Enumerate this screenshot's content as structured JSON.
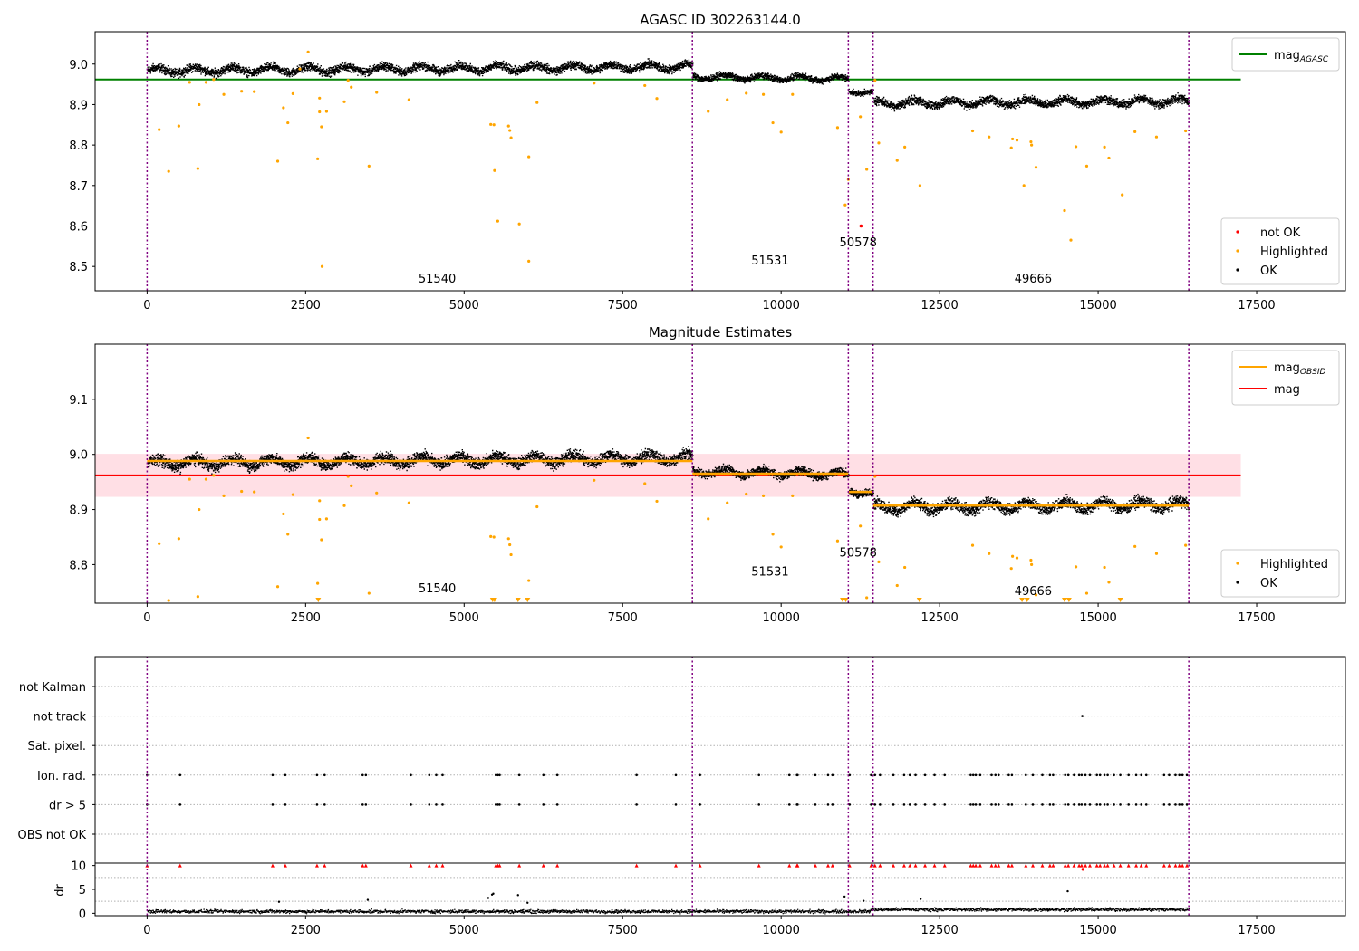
{
  "chart_data": [
    {
      "type": "scatter",
      "title": "AGASC ID 302263144.0",
      "xlim": [
        -820,
        18900
      ],
      "ylim": [
        8.44,
        9.08
      ],
      "xticks": [
        0,
        2500,
        5000,
        7500,
        10000,
        12500,
        15000,
        17500
      ],
      "yticks": [
        8.5,
        8.6,
        8.7,
        8.8,
        8.9,
        9.0
      ],
      "vlines": [
        0,
        8600,
        11060,
        11450,
        16430
      ],
      "obsid_labels": [
        {
          "text": "51540",
          "x": 4280,
          "y": 8.46
        },
        {
          "text": "51531",
          "x": 9530,
          "y": 8.505
        },
        {
          "text": "50578",
          "x": 10920,
          "y": 8.55
        },
        {
          "text": "49666",
          "x": 13680,
          "y": 8.46
        }
      ],
      "hline": {
        "name": "mag",
        "sub": "AGASC",
        "y": 8.962,
        "x0": -820,
        "x1": 17250,
        "color": "#008000"
      },
      "legend_lines": [
        {
          "name": "mag",
          "sub": "AGASC",
          "color": "#008000"
        }
      ],
      "legend_points": [
        {
          "name": "not OK",
          "color": "#ff0000"
        },
        {
          "name": "Highlighted",
          "color": "#ffa500"
        },
        {
          "name": "OK",
          "color": "#000000"
        }
      ],
      "ok_segments": [
        {
          "x0": 0,
          "x1": 8600,
          "y0": 8.985,
          "y1": 8.995,
          "spread": 0.016
        },
        {
          "x0": 8600,
          "x1": 11060,
          "y0": 8.97,
          "y1": 8.965,
          "spread": 0.012
        },
        {
          "x0": 11060,
          "x1": 11450,
          "y0": 8.935,
          "y1": 8.93,
          "spread": 0.01
        },
        {
          "x0": 11450,
          "x1": 16430,
          "y0": 8.905,
          "y1": 8.91,
          "spread": 0.016
        }
      ],
      "highlighted": [
        [
          190,
          8.838
        ],
        [
          340,
          8.735
        ],
        [
          500,
          8.847
        ],
        [
          670,
          8.955
        ],
        [
          800,
          8.742
        ],
        [
          820,
          8.9
        ],
        [
          930,
          8.955
        ],
        [
          1050,
          8.962
        ],
        [
          1210,
          8.925
        ],
        [
          1490,
          8.933
        ],
        [
          1690,
          8.932
        ],
        [
          2060,
          8.76
        ],
        [
          2150,
          8.892
        ],
        [
          2220,
          8.855
        ],
        [
          2300,
          8.927
        ],
        [
          2410,
          8.988
        ],
        [
          2540,
          9.03
        ],
        [
          2690,
          8.766
        ],
        [
          2720,
          8.916
        ],
        [
          2750,
          8.845
        ],
        [
          2720,
          8.882
        ],
        [
          2760,
          8.5
        ],
        [
          2830,
          8.883
        ],
        [
          3110,
          8.907
        ],
        [
          3170,
          8.96
        ],
        [
          3220,
          8.943
        ],
        [
          3500,
          8.748
        ],
        [
          3620,
          8.93
        ],
        [
          4130,
          8.912
        ],
        [
          5420,
          8.851
        ],
        [
          5470,
          8.85
        ],
        [
          5480,
          8.737
        ],
        [
          5530,
          8.612
        ],
        [
          5700,
          8.847
        ],
        [
          5720,
          8.836
        ],
        [
          5740,
          8.818
        ],
        [
          5870,
          8.605
        ],
        [
          6020,
          8.513
        ],
        [
          6020,
          8.771
        ],
        [
          6150,
          8.905
        ],
        [
          7050,
          8.953
        ],
        [
          7850,
          8.947
        ],
        [
          8040,
          8.915
        ],
        [
          8850,
          8.883
        ],
        [
          9150,
          8.912
        ],
        [
          9450,
          8.928
        ],
        [
          9720,
          8.925
        ],
        [
          9870,
          8.855
        ],
        [
          10000,
          8.832
        ],
        [
          10180,
          8.925
        ],
        [
          10890,
          8.843
        ],
        [
          11010,
          8.652
        ],
        [
          11060,
          8.715
        ],
        [
          11250,
          8.87
        ],
        [
          11350,
          8.74
        ],
        [
          11480,
          8.96
        ],
        [
          11540,
          8.805
        ],
        [
          11830,
          8.762
        ],
        [
          11950,
          8.795
        ],
        [
          12190,
          8.7
        ],
        [
          13020,
          8.835
        ],
        [
          13280,
          8.82
        ],
        [
          13630,
          8.793
        ],
        [
          13650,
          8.815
        ],
        [
          13720,
          8.812
        ],
        [
          13830,
          8.7
        ],
        [
          13940,
          8.808
        ],
        [
          13950,
          8.8
        ],
        [
          14020,
          8.745
        ],
        [
          14470,
          8.638
        ],
        [
          14570,
          8.565
        ],
        [
          14650,
          8.796
        ],
        [
          14820,
          8.748
        ],
        [
          15100,
          8.795
        ],
        [
          15170,
          8.768
        ],
        [
          15380,
          8.677
        ],
        [
          15580,
          8.833
        ],
        [
          15920,
          8.82
        ],
        [
          16380,
          8.835
        ]
      ],
      "not_ok": [
        [
          11260,
          8.6
        ]
      ]
    },
    {
      "type": "scatter",
      "title": "Magnitude Estimates",
      "xlim": [
        -820,
        18900
      ],
      "ylim": [
        8.73,
        9.2
      ],
      "xticks": [
        0,
        2500,
        5000,
        7500,
        10000,
        12500,
        15000,
        17500
      ],
      "yticks": [
        8.8,
        8.9,
        9.0,
        9.1
      ],
      "vlines": [
        0,
        8600,
        11060,
        11450,
        16430
      ],
      "obsid_labels": [
        {
          "text": "51540",
          "x": 4280,
          "y": 8.75
        },
        {
          "text": "51531",
          "x": 9530,
          "y": 8.78
        },
        {
          "text": "50578",
          "x": 10920,
          "y": 8.815
        },
        {
          "text": "49666",
          "x": 13680,
          "y": 8.745
        }
      ],
      "band": {
        "y0": 8.923,
        "y1": 9.001,
        "x0": -820,
        "x1": 17250,
        "color": "#ffc0cb"
      },
      "hline": {
        "name": "mag",
        "y": 8.962,
        "x0": -820,
        "x1": 17250,
        "color": "#ff0000"
      },
      "obsid_mags": [
        {
          "x0": 0,
          "x1": 8600,
          "y": 8.988
        },
        {
          "x0": 8600,
          "x1": 11060,
          "y": 8.965
        },
        {
          "x0": 11060,
          "x1": 11450,
          "y": 8.932
        },
        {
          "x0": 11450,
          "x1": 16430,
          "y": 8.907
        }
      ],
      "legend_lines": [
        {
          "name": "mag",
          "sub": "OBSID",
          "color": "#ffa500"
        },
        {
          "name": "mag",
          "sub": "",
          "color": "#ff0000"
        }
      ],
      "legend_points": [
        {
          "name": "Highlighted",
          "color": "#ffa500"
        },
        {
          "name": "OK",
          "color": "#000000"
        }
      ],
      "ok_segments": [
        {
          "x0": 0,
          "x1": 8600,
          "y0": 8.985,
          "y1": 8.995,
          "spread": 0.016
        },
        {
          "x0": 8600,
          "x1": 11060,
          "y0": 8.97,
          "y1": 8.965,
          "spread": 0.012
        },
        {
          "x0": 11060,
          "x1": 11450,
          "y0": 8.935,
          "y1": 8.93,
          "spread": 0.01
        },
        {
          "x0": 11450,
          "x1": 16430,
          "y0": 8.905,
          "y1": 8.91,
          "spread": 0.016
        }
      ],
      "highlighted": [
        [
          190,
          8.838
        ],
        [
          340,
          8.735
        ],
        [
          500,
          8.847
        ],
        [
          670,
          8.955
        ],
        [
          800,
          8.742
        ],
        [
          820,
          8.9
        ],
        [
          930,
          8.955
        ],
        [
          1050,
          8.962
        ],
        [
          1210,
          8.925
        ],
        [
          1490,
          8.933
        ],
        [
          1690,
          8.932
        ],
        [
          2060,
          8.76
        ],
        [
          2150,
          8.892
        ],
        [
          2220,
          8.855
        ],
        [
          2300,
          8.927
        ],
        [
          2410,
          8.988
        ],
        [
          2540,
          9.03
        ],
        [
          2690,
          8.766
        ],
        [
          2720,
          8.916
        ],
        [
          2750,
          8.845
        ],
        [
          2720,
          8.882
        ],
        [
          2830,
          8.883
        ],
        [
          3110,
          8.907
        ],
        [
          3170,
          8.96
        ],
        [
          3220,
          8.943
        ],
        [
          3500,
          8.748
        ],
        [
          3620,
          8.93
        ],
        [
          4130,
          8.912
        ],
        [
          5420,
          8.851
        ],
        [
          5470,
          8.85
        ],
        [
          5700,
          8.847
        ],
        [
          5720,
          8.836
        ],
        [
          5740,
          8.818
        ],
        [
          6020,
          8.771
        ],
        [
          6150,
          8.905
        ],
        [
          7050,
          8.953
        ],
        [
          7850,
          8.947
        ],
        [
          8040,
          8.915
        ],
        [
          8850,
          8.883
        ],
        [
          9150,
          8.912
        ],
        [
          9450,
          8.928
        ],
        [
          9720,
          8.925
        ],
        [
          9870,
          8.855
        ],
        [
          10000,
          8.832
        ],
        [
          10180,
          8.925
        ],
        [
          10890,
          8.843
        ],
        [
          11250,
          8.87
        ],
        [
          11350,
          8.74
        ],
        [
          11480,
          8.96
        ],
        [
          11540,
          8.805
        ],
        [
          11830,
          8.762
        ],
        [
          11950,
          8.795
        ],
        [
          13020,
          8.835
        ],
        [
          13280,
          8.82
        ],
        [
          13630,
          8.793
        ],
        [
          13650,
          8.815
        ],
        [
          13720,
          8.812
        ],
        [
          13940,
          8.808
        ],
        [
          13950,
          8.8
        ],
        [
          14020,
          8.745
        ],
        [
          14650,
          8.796
        ],
        [
          14820,
          8.748
        ],
        [
          15100,
          8.795
        ],
        [
          15170,
          8.768
        ],
        [
          15580,
          8.833
        ],
        [
          15920,
          8.82
        ],
        [
          16380,
          8.835
        ]
      ],
      "below_range": [
        2700,
        5450,
        5480,
        5850,
        6000,
        10970,
        11020,
        12180,
        13800,
        13880,
        14470,
        14540,
        15350
      ]
    },
    {
      "type": "scatter",
      "xlim": [
        -820,
        18900
      ],
      "xticks": [
        0,
        2500,
        5000,
        7500,
        10000,
        12500,
        15000,
        17500
      ],
      "vlines": [
        0,
        8600,
        11060,
        11450,
        16430
      ],
      "flag_labels": [
        "not Kalman",
        "not track",
        "Sat. pixel.",
        "Ion. rad.",
        "dr > 5",
        "OBS not OK"
      ],
      "flags": {
        "not track": [
          14750
        ],
        "Ion. rad.": [
          0,
          520,
          1980,
          2180,
          2680,
          2800,
          3400,
          3450,
          4160,
          4450,
          4560,
          4660,
          5500,
          5530,
          5560,
          5870,
          6250,
          6470,
          7720,
          8340,
          8720,
          9650,
          10130,
          10250,
          10260,
          10540,
          10740,
          10810,
          11080,
          11420,
          11480,
          11560,
          11770,
          11940,
          12030,
          12120,
          12270,
          12420,
          12580,
          12990,
          13030,
          13070,
          13140,
          13320,
          13380,
          13430,
          13590,
          13640,
          13860,
          13970,
          14120,
          14240,
          14290,
          14480,
          14530,
          14620,
          14700,
          14740,
          14800,
          14870,
          14980,
          15030,
          15100,
          15150,
          15250,
          15350,
          15480,
          15600,
          15680,
          15760,
          16040,
          16120,
          16220,
          16280,
          16330,
          16400
        ],
        "dr > 5": [
          0,
          520,
          1980,
          2180,
          2680,
          2800,
          3400,
          3450,
          4160,
          4450,
          4560,
          4660,
          5500,
          5530,
          5560,
          5870,
          6250,
          6470,
          7720,
          8340,
          8720,
          9650,
          10130,
          10250,
          10260,
          10540,
          10740,
          10810,
          11080,
          11420,
          11480,
          11560,
          11770,
          11940,
          12030,
          12120,
          12270,
          12420,
          12580,
          12990,
          13030,
          13070,
          13140,
          13320,
          13380,
          13430,
          13590,
          13640,
          13860,
          13970,
          14120,
          14240,
          14290,
          14480,
          14530,
          14620,
          14700,
          14740,
          14800,
          14870,
          14980,
          15030,
          15100,
          15150,
          15250,
          15350,
          15480,
          15600,
          15680,
          15760,
          16040,
          16120,
          16220,
          16280,
          16330,
          16400
        ]
      },
      "dr_panel": {
        "ylabel": "dr",
        "ylim": [
          -0.5,
          10.5
        ],
        "yticks": [
          0,
          5,
          10
        ],
        "clipped_at": 10,
        "clipped_x": [
          0,
          520,
          1980,
          2180,
          2680,
          2800,
          3400,
          3450,
          4160,
          4450,
          4560,
          4660,
          5500,
          5530,
          5560,
          5870,
          6250,
          6470,
          7720,
          8340,
          8720,
          9650,
          10130,
          10250,
          10260,
          10540,
          10740,
          10810,
          11080,
          11420,
          11480,
          11560,
          11770,
          11940,
          12030,
          12120,
          12270,
          12420,
          12580,
          12990,
          13030,
          13070,
          13140,
          13320,
          13380,
          13430,
          13590,
          13640,
          13860,
          13970,
          14120,
          14240,
          14290,
          14480,
          14530,
          14620,
          14700,
          14740,
          14800,
          14870,
          14980,
          15030,
          15100,
          15150,
          15250,
          15350,
          15480,
          15600,
          15680,
          15760,
          16040,
          16120,
          16220,
          16280,
          16330,
          16400
        ],
        "outliers": [
          [
            2080,
            2.4
          ],
          [
            3480,
            2.8
          ],
          [
            5380,
            3.2
          ],
          [
            5440,
            3.9
          ],
          [
            5460,
            4.1
          ],
          [
            5850,
            3.8
          ],
          [
            6000,
            2.2
          ],
          [
            11000,
            3.5
          ],
          [
            11300,
            2.6
          ],
          [
            12200,
            3.0
          ],
          [
            14520,
            4.6
          ],
          [
            14760,
            9.2
          ]
        ],
        "baseline_segments": [
          {
            "x0": 0,
            "x1": 11400,
            "y": 0.5
          },
          {
            "x0": 11400,
            "x1": 16430,
            "y": 0.9
          }
        ]
      },
      "colors": {
        "ok": "#000000",
        "not_ok": "#ff0000",
        "vline": "#800080",
        "grid": "#b0b0b0"
      }
    }
  ]
}
